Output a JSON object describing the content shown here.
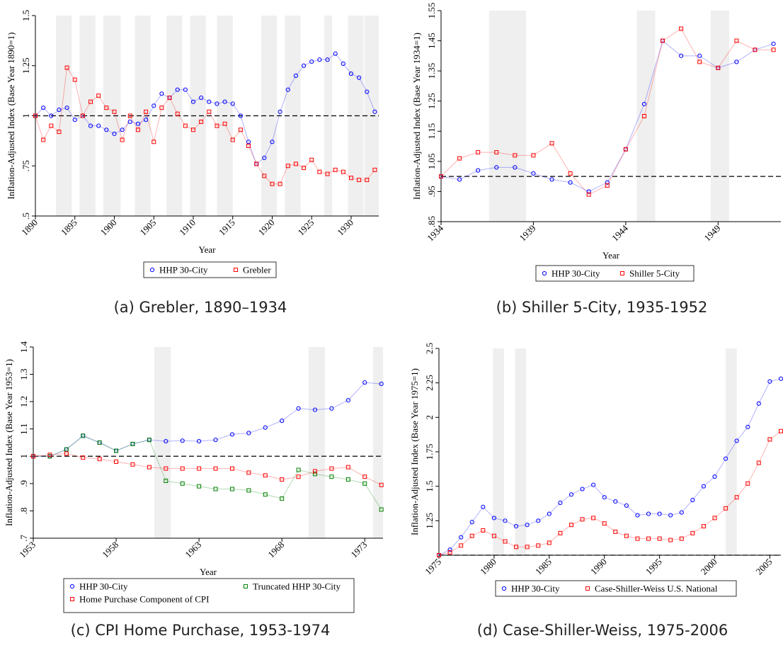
{
  "chart_data": [
    {
      "type": "line",
      "title": "(a) Grebler, 1890–1934",
      "xlabel": "Year",
      "ylabel": "Inflation-Adjusted Index (Base Year 1890=1)",
      "x": [
        1890,
        1891,
        1892,
        1893,
        1894,
        1895,
        1896,
        1897,
        1898,
        1899,
        1900,
        1901,
        1902,
        1903,
        1904,
        1905,
        1906,
        1907,
        1908,
        1909,
        1910,
        1911,
        1912,
        1913,
        1914,
        1915,
        1916,
        1917,
        1918,
        1919,
        1920,
        1921,
        1922,
        1923,
        1924,
        1925,
        1926,
        1927,
        1928,
        1929,
        1930,
        1931,
        1932,
        1933
      ],
      "series": [
        {
          "name": "HHP 30-City",
          "color": "#0000ff",
          "marker": "circle",
          "values": [
            1.0,
            1.04,
            1.0,
            1.03,
            1.04,
            0.98,
            1.0,
            0.95,
            0.95,
            0.93,
            0.91,
            0.93,
            0.97,
            0.96,
            0.98,
            1.05,
            1.11,
            1.09,
            1.13,
            1.13,
            1.07,
            1.09,
            1.07,
            1.06,
            1.07,
            1.06,
            1.0,
            0.87,
            0.76,
            0.79,
            0.87,
            1.02,
            1.13,
            1.2,
            1.25,
            1.27,
            1.28,
            1.28,
            1.31,
            1.26,
            1.21,
            1.19,
            1.12,
            1.02
          ]
        },
        {
          "name": "Grebler",
          "color": "#ff0000",
          "marker": "square",
          "values": [
            1.0,
            0.88,
            0.95,
            0.92,
            1.24,
            1.18,
            1.0,
            1.07,
            1.1,
            1.04,
            1.02,
            0.88,
            1.0,
            0.93,
            1.02,
            0.87,
            1.04,
            1.09,
            1.01,
            0.95,
            0.93,
            0.97,
            1.02,
            0.95,
            0.96,
            0.88,
            0.93,
            0.85,
            0.76,
            0.7,
            0.66,
            0.66,
            0.75,
            0.76,
            0.74,
            0.78,
            0.72,
            0.71,
            0.73,
            0.72,
            0.69,
            0.68,
            0.68,
            0.73
          ]
        }
      ],
      "xlim": [
        1890,
        1933.5
      ],
      "xticks": [
        1890,
        1895,
        1900,
        1905,
        1910,
        1915,
        1920,
        1925,
        1930
      ],
      "ylim": [
        0.5,
        1.5
      ],
      "yticks": [
        {
          "value": 0.5,
          "label": ".5"
        },
        {
          "value": 0.75,
          "label": ".75"
        },
        1,
        1.25,
        1.5
      ],
      "refline": 1,
      "shaded": [
        [
          1892.6,
          1894.6
        ],
        [
          1895.6,
          1897.6
        ],
        [
          1898.6,
          1900.8
        ],
        [
          1902.6,
          1904.6
        ],
        [
          1906.6,
          1908.6
        ],
        [
          1909.6,
          1911.6
        ],
        [
          1913,
          1915
        ],
        [
          1918.6,
          1920.6
        ],
        [
          1921.6,
          1923.6
        ],
        [
          1926.6,
          1927.6
        ],
        [
          1929.6,
          1931.6
        ],
        [
          1931.7,
          1933.5
        ]
      ]
    },
    {
      "type": "line",
      "title": "(b) Shiller 5-City, 1935-1952",
      "xlabel": "Year",
      "ylabel": "Inflation-Adjusted Index (Base Year 1934=1)",
      "x": [
        1934,
        1935,
        1936,
        1937,
        1938,
        1939,
        1940,
        1941,
        1942,
        1943,
        1944,
        1945,
        1946,
        1947,
        1948,
        1949,
        1950,
        1951,
        1952
      ],
      "series": [
        {
          "name": "HHP 30-City",
          "color": "#0000ff",
          "marker": "circle",
          "values": [
            1.0,
            0.99,
            1.02,
            1.03,
            1.03,
            1.01,
            0.99,
            0.98,
            0.95,
            0.98,
            1.09,
            1.24,
            1.45,
            1.4,
            1.4,
            1.36,
            1.38,
            1.42,
            1.44
          ]
        },
        {
          "name": "Shiller 5-City",
          "color": "#ff0000",
          "marker": "square",
          "values": [
            1.0,
            1.06,
            1.08,
            1.08,
            1.07,
            1.07,
            1.11,
            1.01,
            0.94,
            0.97,
            1.09,
            1.2,
            1.45,
            1.49,
            1.38,
            1.36,
            1.45,
            1.42,
            1.42
          ]
        }
      ],
      "xlim": [
        1934,
        1952.4
      ],
      "xticks": [
        1934,
        1939,
        1944,
        1949
      ],
      "ylim": [
        0.85,
        1.55
      ],
      "yticks": [
        {
          "value": 0.85,
          "label": ".85"
        },
        {
          "value": 0.95,
          "label": ".95"
        },
        1.05,
        1.15,
        1.25,
        1.35,
        1.45,
        1.55
      ],
      "refline": 1,
      "shaded": [
        [
          1936.6,
          1938.6
        ],
        [
          1944.6,
          1945.6
        ],
        [
          1948.6,
          1949.6
        ]
      ]
    },
    {
      "type": "line",
      "title": "(c) CPI Home Purchase, 1953-1974",
      "xlabel": "Year",
      "ylabel": "Inflation-Adjusted Index (Base Year 1953=1)",
      "x": [
        1953,
        1954,
        1955,
        1956,
        1957,
        1958,
        1959,
        1960,
        1961,
        1962,
        1963,
        1964,
        1965,
        1966,
        1967,
        1968,
        1969,
        1970,
        1971,
        1972,
        1973,
        1974
      ],
      "series": [
        {
          "name": "HHP 30-City",
          "color": "#0000ff",
          "marker": "circle",
          "values": [
            1.0,
            1.0,
            1.025,
            1.075,
            1.05,
            1.02,
            1.045,
            1.06,
            1.055,
            1.057,
            1.055,
            1.06,
            1.08,
            1.085,
            1.105,
            1.13,
            1.175,
            1.17,
            1.175,
            1.205,
            1.27,
            1.265
          ]
        },
        {
          "name": "Truncated HHP 30-City",
          "color": "#008000",
          "marker": "square",
          "values": [
            1.0,
            1.0,
            1.025,
            1.075,
            1.05,
            1.02,
            1.045,
            1.06,
            0.91,
            0.9,
            0.89,
            0.88,
            0.88,
            0.875,
            0.86,
            0.845,
            0.95,
            0.935,
            0.925,
            0.915,
            0.9,
            0.805
          ]
        },
        {
          "name": "Home Purchase Component of CPI",
          "color": "#ff0000",
          "marker": "square",
          "values": [
            1.0,
            1.005,
            1.01,
            0.995,
            0.99,
            0.98,
            0.97,
            0.96,
            0.955,
            0.955,
            0.955,
            0.955,
            0.955,
            0.94,
            0.93,
            0.915,
            0.925,
            0.945,
            0.955,
            0.96,
            0.925,
            0.895
          ]
        }
      ],
      "xlim": [
        1953,
        1974.1
      ],
      "xticks": [
        1953,
        1958,
        1963,
        1968,
        1973
      ],
      "ylim": [
        0.7,
        1.4
      ],
      "yticks": [
        {
          "value": 0.7,
          "label": ".7"
        },
        {
          "value": 0.8,
          "label": ".8"
        },
        {
          "value": 0.9,
          "label": ".9"
        },
        1,
        1.1,
        1.2,
        1.3,
        1.4
      ],
      "refline": 1,
      "shaded": [
        [
          1960.3,
          1961.3
        ],
        [
          1969.6,
          1970.6
        ],
        [
          1973.5,
          1974.1
        ]
      ]
    },
    {
      "type": "line",
      "title": "(d) Case-Shiller-Weiss, 1975-2006",
      "xlabel": "Year",
      "ylabel": "Inflation-Adjusted Index (Base Year 1975=1)",
      "x": [
        1975,
        1976,
        1977,
        1978,
        1979,
        1980,
        1981,
        1982,
        1983,
        1984,
        1985,
        1986,
        1987,
        1988,
        1989,
        1990,
        1991,
        1992,
        1993,
        1994,
        1995,
        1996,
        1997,
        1998,
        1999,
        2000,
        2001,
        2002,
        2003,
        2004,
        2005,
        2006
      ],
      "series": [
        {
          "name": "HHP 30-City",
          "color": "#0000ff",
          "marker": "circle",
          "values": [
            1.0,
            1.04,
            1.13,
            1.24,
            1.35,
            1.27,
            1.25,
            1.21,
            1.22,
            1.25,
            1.3,
            1.38,
            1.44,
            1.48,
            1.51,
            1.42,
            1.39,
            1.36,
            1.29,
            1.3,
            1.3,
            1.29,
            1.31,
            1.4,
            1.5,
            1.57,
            1.7,
            1.83,
            1.93,
            2.1,
            2.26,
            2.28
          ]
        },
        {
          "name": "Case-Shiller-Weiss U.S. National",
          "color": "#ff0000",
          "marker": "square",
          "values": [
            1.0,
            1.02,
            1.07,
            1.14,
            1.18,
            1.14,
            1.1,
            1.06,
            1.06,
            1.07,
            1.09,
            1.16,
            1.22,
            1.26,
            1.27,
            1.23,
            1.17,
            1.14,
            1.12,
            1.12,
            1.12,
            1.11,
            1.12,
            1.16,
            1.21,
            1.27,
            1.34,
            1.42,
            1.52,
            1.67,
            1.84,
            1.9
          ]
        }
      ],
      "xlim": [
        1975,
        2006
      ],
      "xticks": [
        1975,
        1980,
        1985,
        1990,
        1995,
        2000,
        2005
      ],
      "ylim": [
        1,
        2.5
      ],
      "yticks": [
        1.25,
        1.5,
        1.75,
        2,
        2.25,
        2.5
      ],
      "refline": 1,
      "shaded": [
        [
          1979.9,
          1980.9
        ],
        [
          1981.9,
          1982.9
        ],
        [
          2001,
          2002
        ]
      ]
    }
  ]
}
